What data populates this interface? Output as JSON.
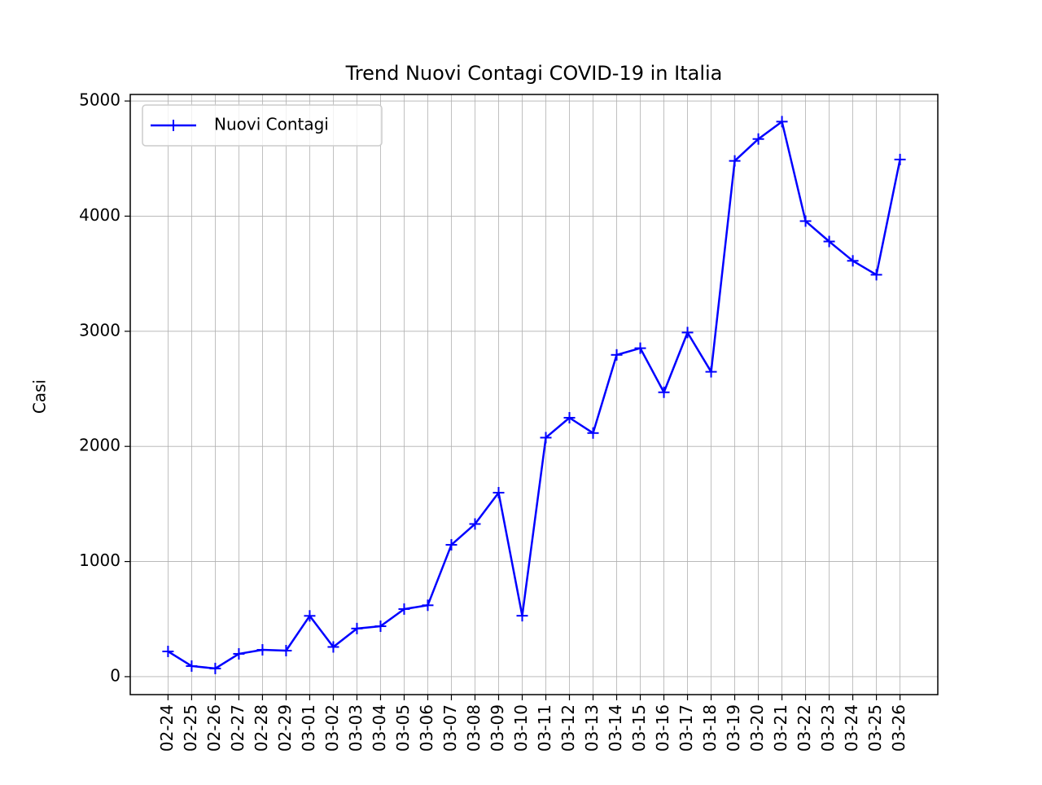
{
  "chart_data": {
    "type": "line",
    "title": "Trend Nuovi Contagi COVID-19 in Italia",
    "y_label": "Casi",
    "categories": [
      "02-24",
      "02-25",
      "02-26",
      "02-27",
      "02-28",
      "02-29",
      "03-01",
      "03-02",
      "03-03",
      "03-04",
      "03-05",
      "03-06",
      "03-07",
      "03-08",
      "03-09",
      "03-10",
      "03-11",
      "03-12",
      "03-13",
      "03-14",
      "03-15",
      "03-16",
      "03-17",
      "03-18",
      "03-19",
      "03-20",
      "03-21",
      "03-22",
      "03-23",
      "03-24",
      "03-25",
      "03-26"
    ],
    "series": [
      {
        "name": "Nuovi Contagi",
        "color": "#0000ff",
        "marker": "+",
        "values": [
          219,
          92,
          71,
          198,
          233,
          226,
          528,
          258,
          418,
          438,
          587,
          620,
          1145,
          1326,
          1598,
          529,
          2076,
          2249,
          2116,
          2795,
          2853,
          2470,
          2989,
          2648,
          4480,
          4670,
          4821,
          3957,
          3780,
          3612,
          3491,
          4492
        ]
      }
    ],
    "ylim": [
      -156,
      5057
    ],
    "yticks": [
      0,
      1000,
      2000,
      3000,
      4000,
      5000
    ],
    "grid": true,
    "legend": "upper left"
  }
}
